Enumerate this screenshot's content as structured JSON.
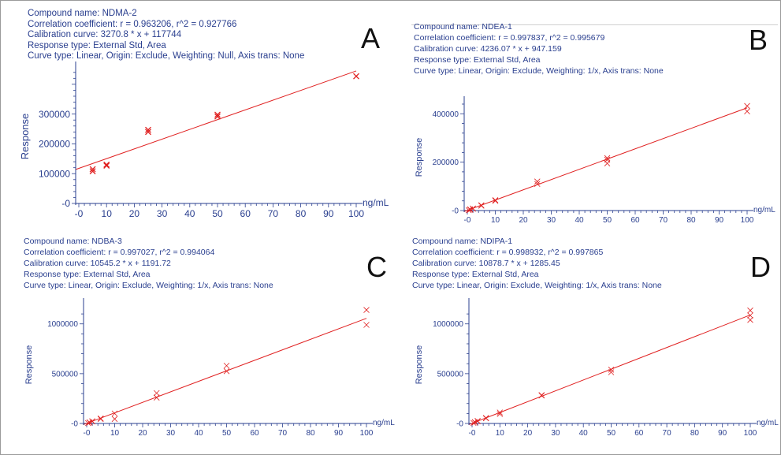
{
  "colors": {
    "text": "#2a3f8f",
    "fit": "#e02020",
    "marker": "#e02020"
  },
  "chart_data": [
    {
      "type": "scatter",
      "panel_letter": "A",
      "info": [
        "Compound name: NDMA-2",
        "Correlation coefficient: r = 0.963206, r^2 = 0.927766",
        "Calibration curve: 3270.8 * x + 117744",
        "Response type: External Std, Area",
        "Curve type: Linear, Origin: Exclude, Weighting: Null, Axis trans: None"
      ],
      "xlabel": "ng/mL",
      "ylabel": "Response",
      "xticks": [
        "-0",
        "10",
        "20",
        "30",
        "40",
        "50",
        "60",
        "70",
        "80",
        "90",
        "100"
      ],
      "yticks": [
        "-0",
        "100000",
        "200000",
        "300000"
      ],
      "xlim": [
        -1,
        100
      ],
      "ylim": [
        0,
        450000
      ],
      "fit": {
        "slope": 3270.8,
        "intercept": 117744
      },
      "points": [
        [
          5,
          115000
        ],
        [
          5,
          108000
        ],
        [
          10,
          130000
        ],
        [
          10,
          127000
        ],
        [
          25,
          247000
        ],
        [
          25,
          240000
        ],
        [
          50,
          298000
        ],
        [
          50,
          292000
        ],
        [
          100,
          427000
        ]
      ]
    },
    {
      "type": "scatter",
      "panel_letter": "B",
      "info": [
        "Compound name: NDEA-1",
        "Correlation coefficient: r = 0.997837, r^2 = 0.995679",
        "Calibration curve: 4236.07 * x + 947.159",
        "Response type: External Std, Area",
        "Curve type: Linear, Origin: Exclude, Weighting: 1/x, Axis trans: None"
      ],
      "xlabel": "ng/mL",
      "ylabel": "Response",
      "xticks": [
        "-0",
        "10",
        "20",
        "30",
        "40",
        "50",
        "60",
        "70",
        "80",
        "90",
        "100"
      ],
      "yticks": [
        "-0",
        "200000",
        "400000"
      ],
      "xlim": [
        -1,
        100
      ],
      "ylim": [
        0,
        440000
      ],
      "fit": {
        "slope": 4236.07,
        "intercept": 947.159
      },
      "points": [
        [
          0.5,
          1500
        ],
        [
          1,
          3500
        ],
        [
          1,
          5000
        ],
        [
          2,
          8500
        ],
        [
          2,
          7500
        ],
        [
          5,
          22000
        ],
        [
          5,
          20000
        ],
        [
          10,
          43000
        ],
        [
          10,
          40000
        ],
        [
          25,
          120000
        ],
        [
          25,
          110000
        ],
        [
          50,
          217000
        ],
        [
          50,
          210000
        ],
        [
          50,
          195000
        ],
        [
          100,
          432000
        ],
        [
          100,
          410000
        ]
      ]
    },
    {
      "type": "scatter",
      "panel_letter": "C",
      "info": [
        "Compound name: NDBA-3",
        "Correlation coefficient: r = 0.997027, r^2 = 0.994064",
        "Calibration curve: 10545.2 * x + 1191.72",
        "Response type: External Std, Area",
        "Curve type: Linear, Origin: Exclude, Weighting: 1/x, Axis trans: None"
      ],
      "xlabel": "ng/mL",
      "ylabel": "Response",
      "xticks": [
        "-0",
        "10",
        "20",
        "30",
        "40",
        "50",
        "60",
        "70",
        "80",
        "90",
        "100"
      ],
      "yticks": [
        "-0",
        "500000",
        "1000000"
      ],
      "xlim": [
        -1,
        100
      ],
      "ylim": [
        0,
        1180000
      ],
      "fit": {
        "slope": 10545.2,
        "intercept": 1191.72
      },
      "points": [
        [
          0.5,
          4000
        ],
        [
          1,
          9000
        ],
        [
          1,
          12000
        ],
        [
          2,
          20000
        ],
        [
          2,
          23000
        ],
        [
          5,
          50000
        ],
        [
          5,
          45000
        ],
        [
          10,
          100000
        ],
        [
          10,
          45000
        ],
        [
          25,
          305000
        ],
        [
          25,
          260000
        ],
        [
          50,
          580000
        ],
        [
          50,
          525000
        ],
        [
          100,
          1140000
        ],
        [
          100,
          990000
        ]
      ]
    },
    {
      "type": "scatter",
      "panel_letter": "D",
      "info": [
        "Compound name: NDIPA-1",
        "Correlation coefficient: r = 0.998932, r^2 = 0.997865",
        "Calibration curve: 10878.7 * x + 1285.45",
        "Response type: External Std, Area",
        "Curve type: Linear, Origin: Exclude, Weighting: 1/x, Axis trans: None"
      ],
      "xlabel": "ng/mL",
      "ylabel": "Response",
      "xticks": [
        "-0",
        "10",
        "20",
        "30",
        "40",
        "50",
        "60",
        "70",
        "80",
        "90",
        "100"
      ],
      "yticks": [
        "-0",
        "500000",
        "1000000"
      ],
      "xlim": [
        -1,
        100
      ],
      "ylim": [
        0,
        1180000
      ],
      "fit": {
        "slope": 10878.7,
        "intercept": 1285.45
      },
      "points": [
        [
          0.5,
          6000
        ],
        [
          1,
          11000
        ],
        [
          1,
          14000
        ],
        [
          2,
          22000
        ],
        [
          2,
          25000
        ],
        [
          5,
          55000
        ],
        [
          5,
          52000
        ],
        [
          10,
          110000
        ],
        [
          10,
          95000
        ],
        [
          25,
          285000
        ],
        [
          25,
          280000
        ],
        [
          50,
          540000
        ],
        [
          50,
          515000
        ],
        [
          100,
          1135000
        ],
        [
          100,
          1085000
        ],
        [
          100,
          1040000
        ]
      ]
    }
  ]
}
